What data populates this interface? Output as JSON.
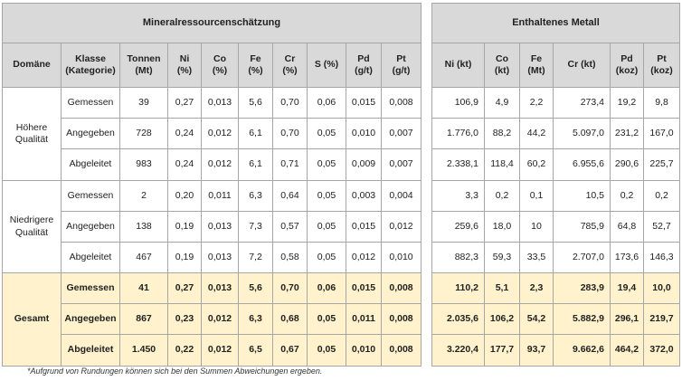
{
  "left": {
    "title": "Mineralressourcenschätzung",
    "headers": [
      "Domäne",
      "Klasse\n(Kategorie)",
      "Tonnen\n(Mt)",
      "Ni\n(%)",
      "Co\n(%)",
      "Fe\n(%)",
      "Cr\n(%)",
      "S (%)",
      "Pd\n(g/t)",
      "Pt\n(g/t)"
    ],
    "groups": [
      {
        "domain": "Höhere\nQualität",
        "rows": [
          [
            "Gemessen",
            "39",
            "0,27",
            "0,013",
            "5,6",
            "0,70",
            "0,06",
            "0,015",
            "0,008"
          ],
          [
            "Angegeben",
            "728",
            "0,24",
            "0,012",
            "6,1",
            "0,70",
            "0,05",
            "0,010",
            "0,007"
          ],
          [
            "Abgeleitet",
            "983",
            "0,24",
            "0,012",
            "6,1",
            "0,71",
            "0,05",
            "0,009",
            "0,007"
          ]
        ]
      },
      {
        "domain": "Niedrigere\nQualität",
        "rows": [
          [
            "Gemessen",
            "2",
            "0,20",
            "0,011",
            "6,3",
            "0,64",
            "0,05",
            "0,003",
            "0,004"
          ],
          [
            "Angegeben",
            "138",
            "0,19",
            "0,013",
            "7,3",
            "0,57",
            "0,05",
            "0,015",
            "0,012"
          ],
          [
            "Abgeleitet",
            "467",
            "0,19",
            "0,013",
            "7,2",
            "0,58",
            "0,05",
            "0,012",
            "0,010"
          ]
        ]
      },
      {
        "domain": "Gesamt",
        "rows": [
          [
            "Gemessen",
            "41",
            "0,27",
            "0,013",
            "5,6",
            "0,70",
            "0,06",
            "0,015",
            "0,008"
          ],
          [
            "Angegeben",
            "867",
            "0,23",
            "0,012",
            "6,3",
            "0,68",
            "0,05",
            "0,011",
            "0,008"
          ],
          [
            "Abgeleitet",
            "1.450",
            "0,22",
            "0,012",
            "6,5",
            "0,67",
            "0,05",
            "0,010",
            "0,008"
          ]
        ]
      }
    ]
  },
  "right": {
    "title": "Enthaltenes Metall",
    "headers": [
      "Ni (kt)",
      "Co\n(kt)",
      "Fe\n(Mt)",
      "Cr (kt)",
      "Pd\n(koz)",
      "Pt\n(koz)"
    ],
    "rows": [
      [
        "106,9",
        "4,9",
        "2,2",
        "273,4",
        "19,2",
        "9,8"
      ],
      [
        "1.776,0",
        "88,2",
        "44,2",
        "5.097,0",
        "231,2",
        "167,0"
      ],
      [
        "2.338,1",
        "118,4",
        "60,2",
        "6.955,6",
        "290,6",
        "225,7"
      ],
      [
        "3,3",
        "0,2",
        "0,1",
        "10,5",
        "0,2",
        "0,2"
      ],
      [
        "259,6",
        "18,0",
        "10",
        "785,9",
        "64,8",
        "52,7"
      ],
      [
        "882,3",
        "59,3",
        "33,5",
        "2.707,0",
        "173,6",
        "146,3"
      ],
      [
        "110,2",
        "5,1",
        "2,3",
        "283,9",
        "19,4",
        "10,0"
      ],
      [
        "2.035,6",
        "106,2",
        "54,2",
        "5.882,9",
        "296,1",
        "219,7"
      ],
      [
        "3.220,4",
        "177,7",
        "93,7",
        "9.662,6",
        "464,2",
        "372,0"
      ]
    ]
  },
  "footnote": "*Aufgrund von Rundungen können sich bei den Summen Abweichungen ergeben."
}
